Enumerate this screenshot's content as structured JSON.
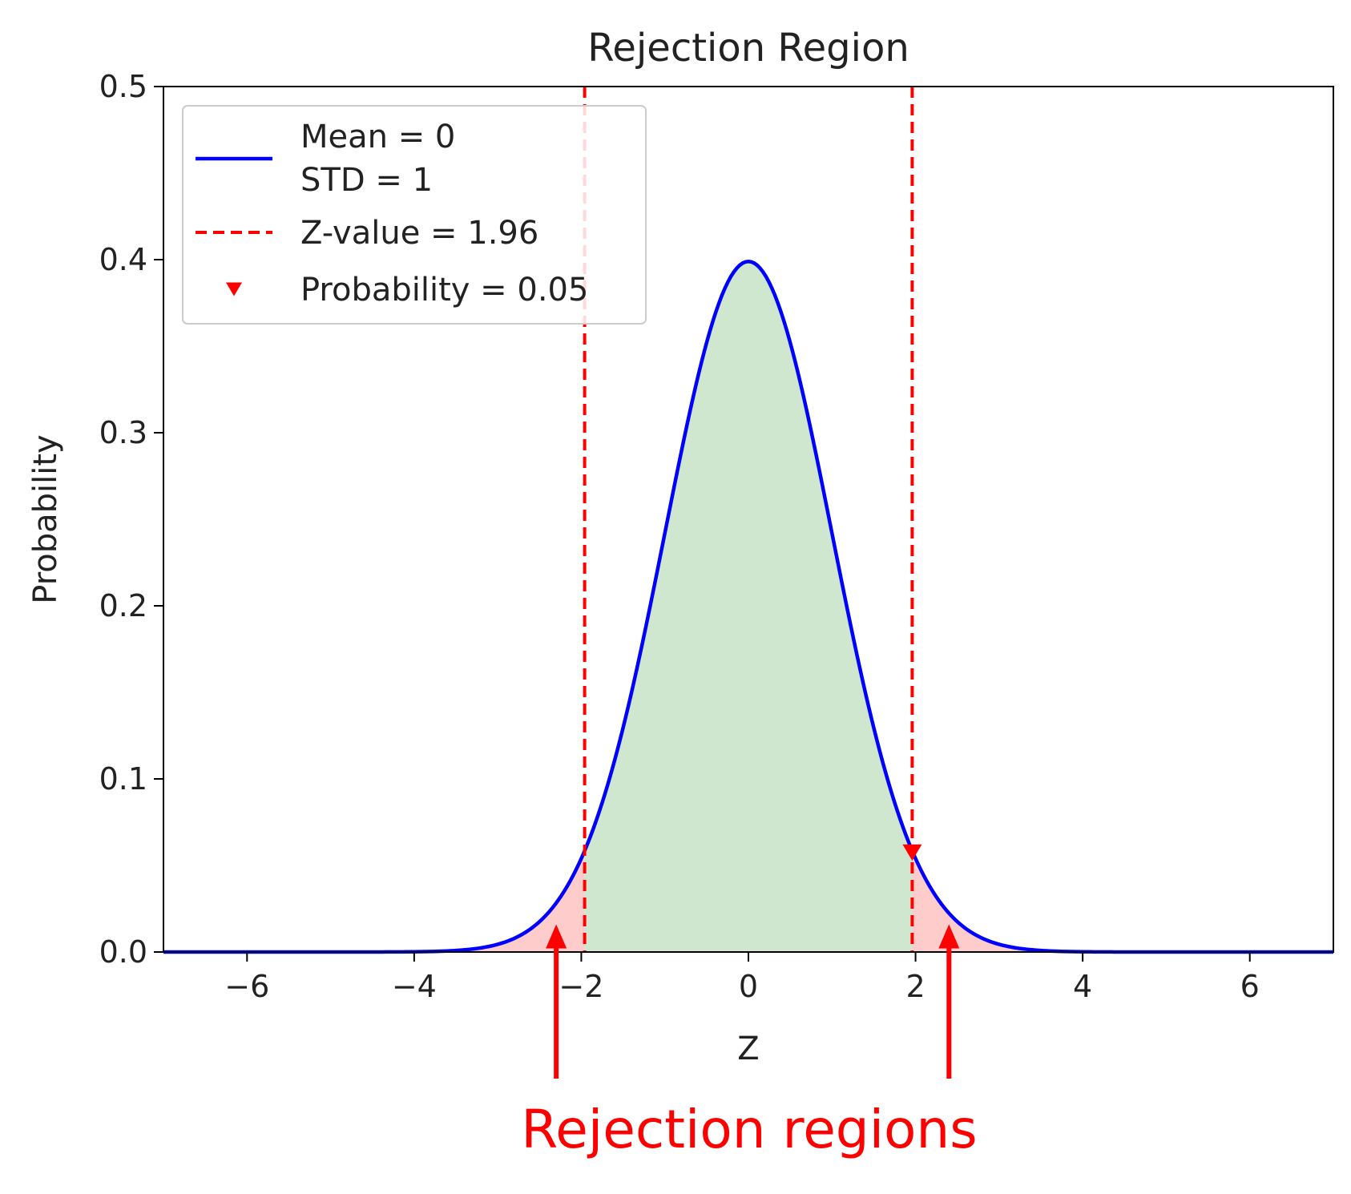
{
  "chart_data": {
    "type": "line",
    "title": "Rejection Region",
    "xlabel": "Z",
    "ylabel": "Probability",
    "xlim": [
      -7,
      7
    ],
    "ylim": [
      0,
      0.5
    ],
    "xticks": [
      -6,
      -4,
      -2,
      0,
      2,
      4,
      6
    ],
    "xtick_labels": [
      "−6",
      "−4",
      "−2",
      "0",
      "2",
      "4",
      "6"
    ],
    "yticks": [
      0.0,
      0.1,
      0.2,
      0.3,
      0.4,
      0.5
    ],
    "ytick_labels": [
      "0.0",
      "0.1",
      "0.2",
      "0.3",
      "0.4",
      "0.5"
    ],
    "grid": false,
    "legend_position": "top-left",
    "series": [
      {
        "name": "Mean = 0\nSTD = 1",
        "kind": "normal-pdf",
        "mean": 0,
        "std": 1,
        "color": "#0000ff"
      },
      {
        "name": "Z-value = 1.96",
        "kind": "vertical-dashed",
        "x": [
          -1.96,
          1.96
        ],
        "color": "#ff0000"
      },
      {
        "name": "Probability = 0.05",
        "kind": "marker",
        "marker": "triangle-down",
        "x": [
          1.96
        ],
        "y": [
          0.058
        ],
        "color": "#ff0000"
      }
    ],
    "regions": {
      "acceptance": {
        "from": -1.96,
        "to": 1.96,
        "color": "#cfe6cf"
      },
      "rejection": [
        {
          "from": -7,
          "to": -1.96,
          "color": "#ffcccc"
        },
        {
          "from": 1.96,
          "to": 7,
          "color": "#ffcccc"
        }
      ]
    },
    "legend": {
      "entries": [
        {
          "line1": "Mean = 0",
          "line2": "STD = 1"
        },
        {
          "line1": "Z-value = 1.96"
        },
        {
          "line1": "Probability = 0.05"
        }
      ]
    },
    "annotation": {
      "text": "Rejection regions",
      "color": "#ff0000",
      "arrow_targets_x": [
        -2.3,
        2.4
      ],
      "arrow_target_y": 0.016
    }
  }
}
